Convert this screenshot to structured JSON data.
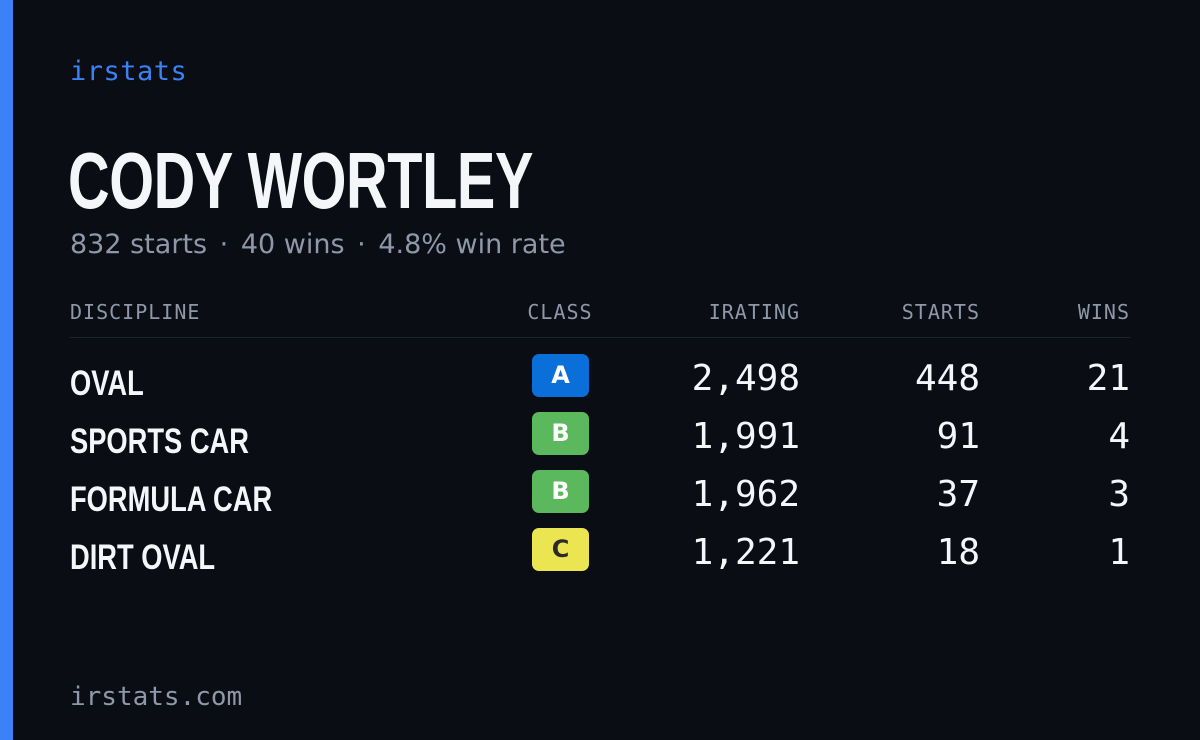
{
  "brand": "irstats",
  "driver": {
    "name": "CODY WORTLEY",
    "starts_text": "832 starts",
    "wins_text": "40 wins",
    "win_rate_text": "4.8% win rate",
    "separator": "·"
  },
  "table": {
    "headers": {
      "discipline": "DISCIPLINE",
      "class": "CLASS",
      "irating": "IRATING",
      "starts": "STARTS",
      "wins": "WINS"
    },
    "rows": [
      {
        "discipline": "OVAL",
        "class": "A",
        "irating": "2,498",
        "starts": "448",
        "wins": "21"
      },
      {
        "discipline": "SPORTS CAR",
        "class": "B",
        "irating": "1,991",
        "starts": "91",
        "wins": "4"
      },
      {
        "discipline": "FORMULA CAR",
        "class": "B",
        "irating": "1,962",
        "starts": "37",
        "wins": "3"
      },
      {
        "discipline": "DIRT OVAL",
        "class": "C",
        "irating": "1,221",
        "starts": "18",
        "wins": "1"
      }
    ]
  },
  "class_colors": {
    "A": {
      "bg": "#0b6fd9",
      "fg": "#ffffff"
    },
    "B": {
      "bg": "#5cb85c",
      "fg": "#ffffff"
    },
    "C": {
      "bg": "#ece552",
      "fg": "#2a2a2a"
    }
  },
  "footer": "irstats.com",
  "colors": {
    "background": "#0a0d14",
    "accent": "#3b82f6",
    "muted_text": "#8e98a9",
    "primary_text": "#f4f6fa"
  }
}
